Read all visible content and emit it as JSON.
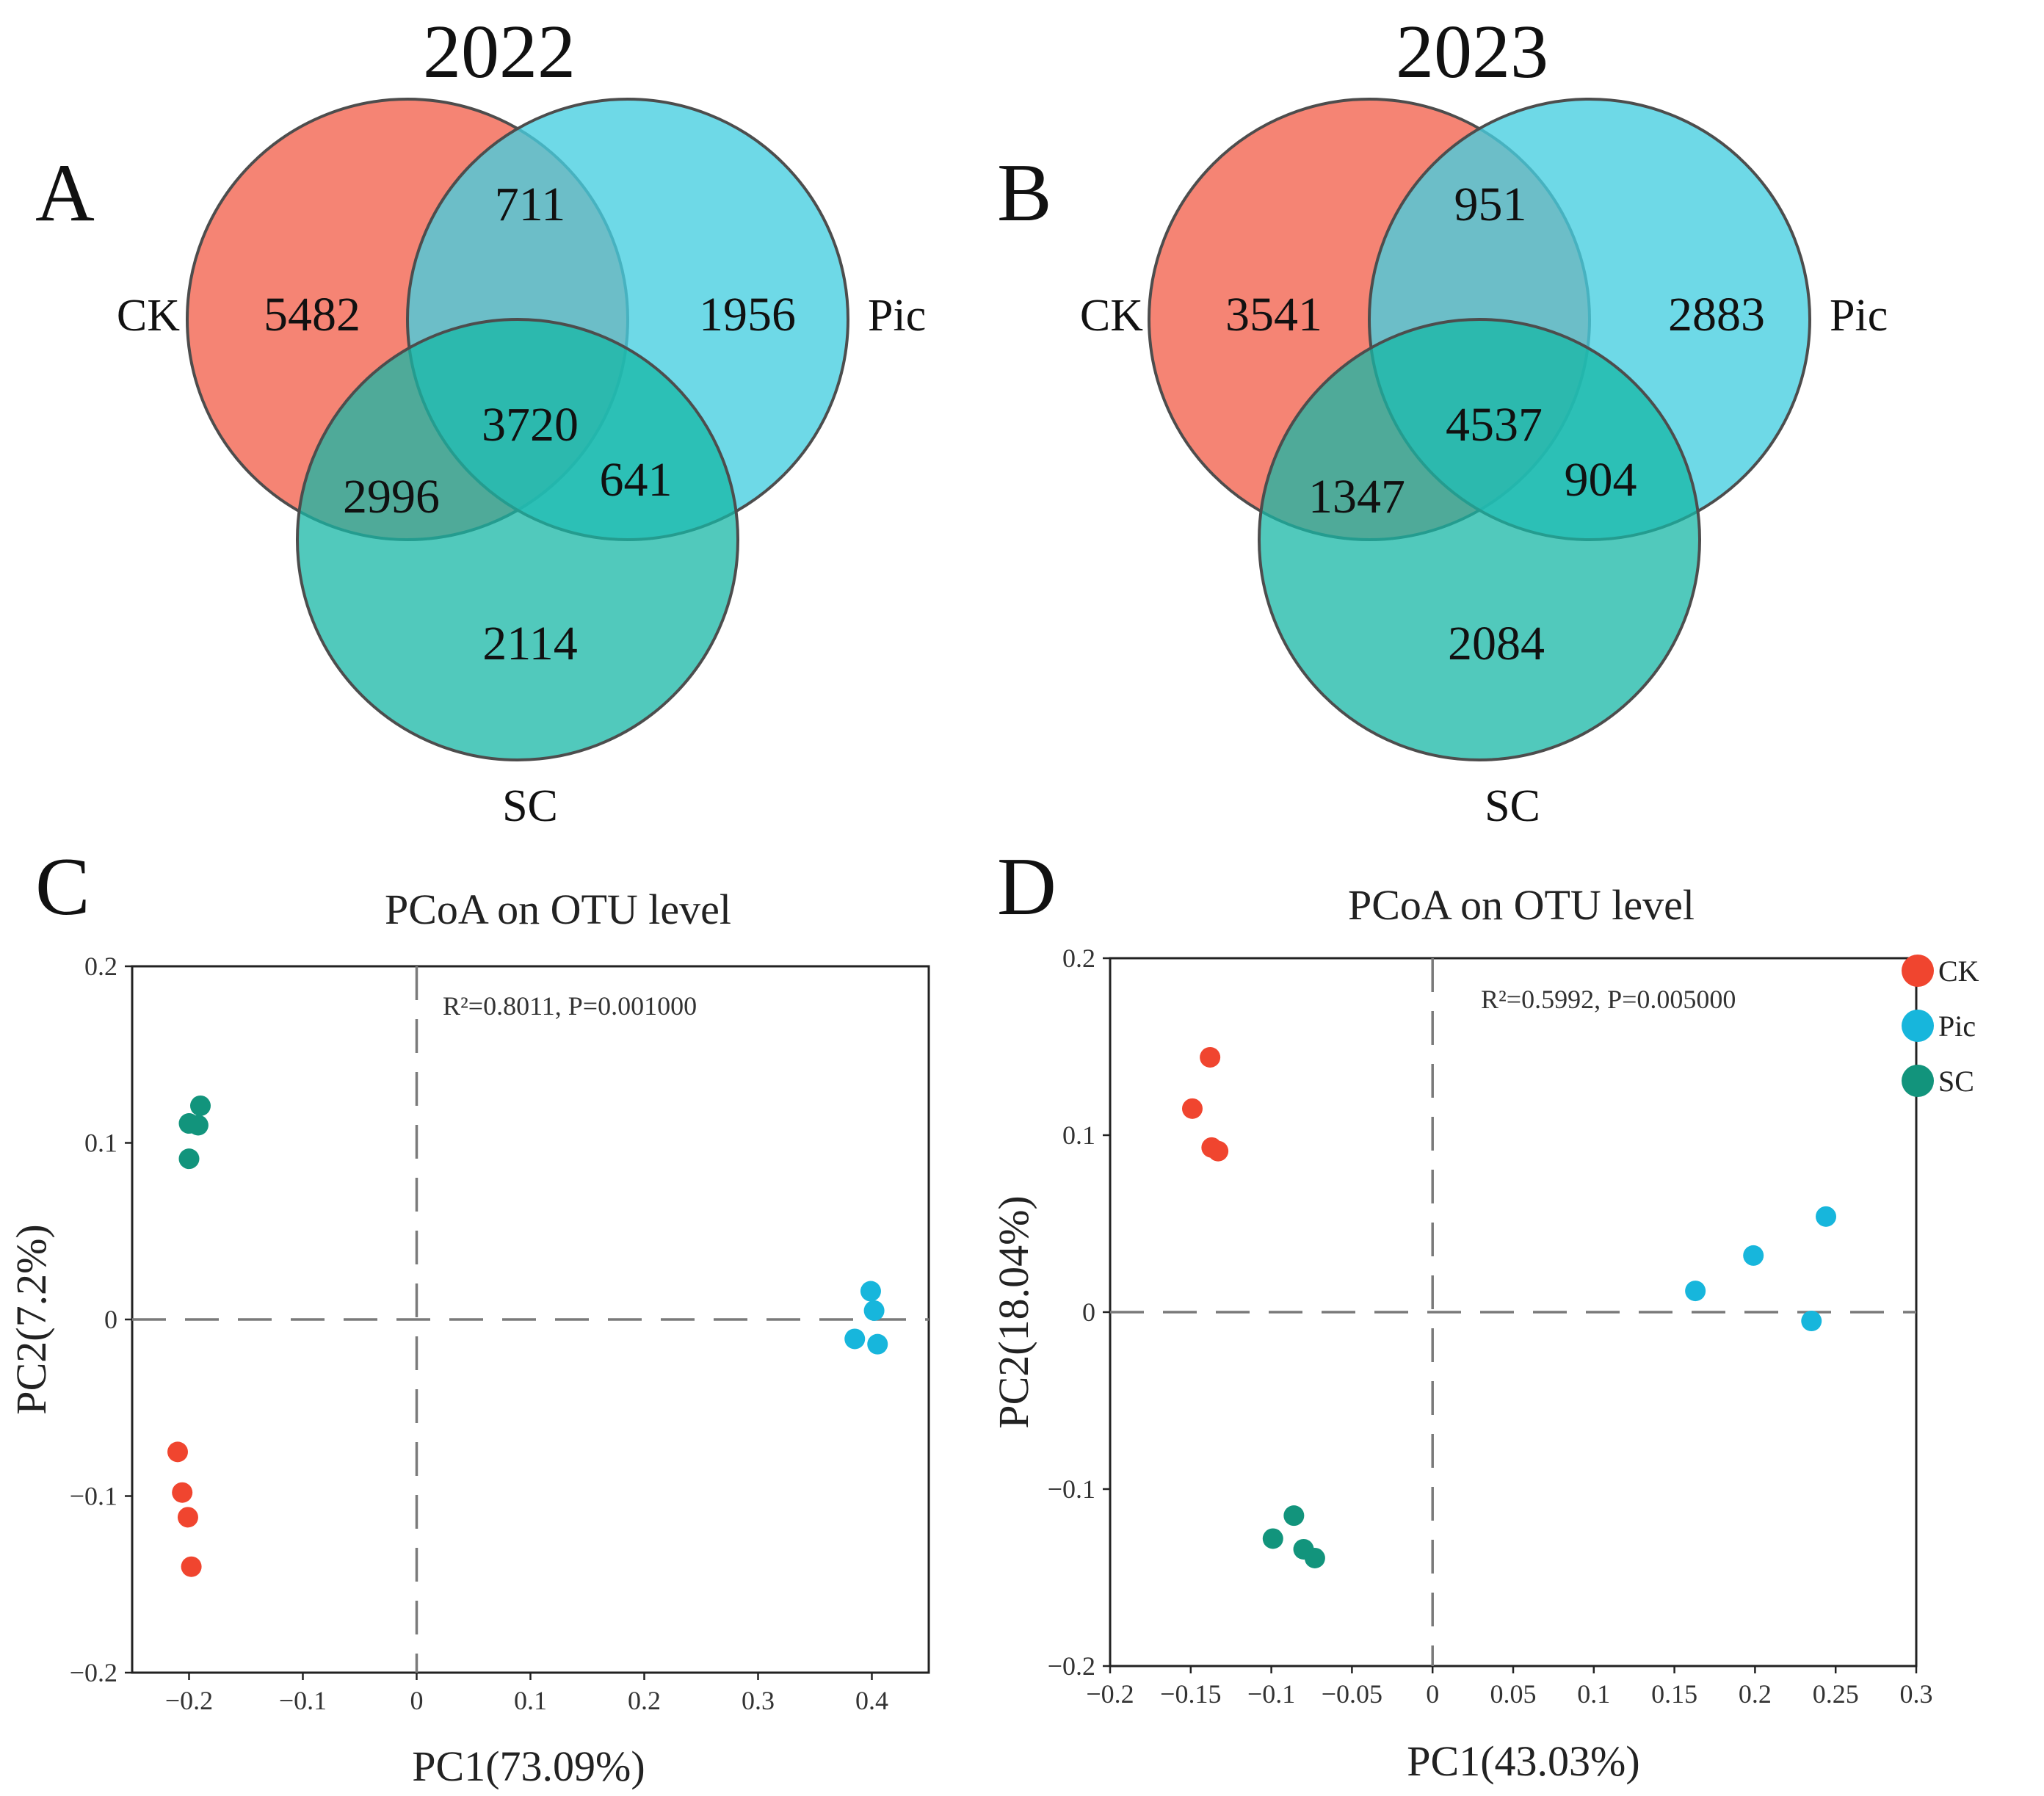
{
  "chart_data": [
    {
      "type": "venn",
      "panel": "A",
      "title": "2022",
      "sets": [
        "CK",
        "Pic",
        "SC"
      ],
      "regions": {
        "CK_only": 5482,
        "Pic_only": 1956,
        "SC_only": 2114,
        "CK_Pic": 711,
        "CK_SC": 2996,
        "Pic_SC": 641,
        "CK_Pic_SC": 3720
      }
    },
    {
      "type": "venn",
      "panel": "B",
      "title": "2023",
      "sets": [
        "CK",
        "Pic",
        "SC"
      ],
      "regions": {
        "CK_only": 3541,
        "Pic_only": 2883,
        "SC_only": 2084,
        "CK_Pic": 951,
        "CK_SC": 1347,
        "Pic_SC": 904,
        "CK_Pic_SC": 4537
      }
    },
    {
      "type": "scatter",
      "panel": "C",
      "title": "PCoA on OTU level",
      "xlabel": "PC1(73.09%)",
      "ylabel": "PC2(7.2%)",
      "xlim": [
        -0.25,
        0.45
      ],
      "ylim": [
        -0.2,
        0.2
      ],
      "xticks": [
        -0.2,
        -0.1,
        0,
        0.1,
        0.2,
        0.3,
        0.4
      ],
      "xtick_labels": [
        "−0.2",
        "−0.1",
        "0",
        "0.1",
        "0.2",
        "0.3",
        "0.4"
      ],
      "yticks": [
        -0.2,
        -0.1,
        0,
        0.1,
        0.2
      ],
      "ytick_labels": [
        "−0.2",
        "−0.1",
        "0",
        "0.1",
        "0.2"
      ],
      "annotation": "R²=0.8011, P=0.001000",
      "series": [
        {
          "name": "CK",
          "points": [
            [
              -0.21,
              -0.075
            ],
            [
              -0.206,
              -0.098
            ],
            [
              -0.201,
              -0.112
            ],
            [
              -0.198,
              -0.14
            ]
          ]
        },
        {
          "name": "Pic",
          "points": [
            [
              0.399,
              0.016
            ],
            [
              0.402,
              0.005
            ],
            [
              0.385,
              -0.011
            ],
            [
              0.405,
              -0.014
            ]
          ]
        },
        {
          "name": "SC",
          "points": [
            [
              -0.19,
              0.121
            ],
            [
              -0.2,
              0.111
            ],
            [
              -0.192,
              0.11
            ],
            [
              -0.2,
              0.091
            ]
          ]
        }
      ]
    },
    {
      "type": "scatter",
      "panel": "D",
      "title": "PCoA on OTU level",
      "xlabel": "PC1(43.03%)",
      "ylabel": "PC2(18.04%)",
      "xlim": [
        -0.2,
        0.3
      ],
      "ylim": [
        -0.2,
        0.2
      ],
      "xticks": [
        -0.2,
        -0.15,
        -0.1,
        -0.05,
        0,
        0.05,
        0.1,
        0.15,
        0.2,
        0.25,
        0.3
      ],
      "xtick_labels": [
        "−0.2",
        "−0.15",
        "−0.1",
        "−0.05",
        "0",
        "0.05",
        "0.1",
        "0.15",
        "0.2",
        "0.25",
        "0.3"
      ],
      "yticks": [
        -0.2,
        -0.1,
        0,
        0.1,
        0.2
      ],
      "ytick_labels": [
        "−0.2",
        "−0.1",
        "0",
        "0.1",
        "0.2"
      ],
      "annotation": "R²=0.5992, P=0.005000",
      "series": [
        {
          "name": "CK",
          "points": [
            [
              -0.138,
              0.144
            ],
            [
              -0.149,
              0.115
            ],
            [
              -0.137,
              0.093
            ],
            [
              -0.133,
              0.091
            ]
          ]
        },
        {
          "name": "Pic",
          "points": [
            [
              0.244,
              0.054
            ],
            [
              0.199,
              0.032
            ],
            [
              0.163,
              0.012
            ],
            [
              0.235,
              -0.005
            ]
          ]
        },
        {
          "name": "SC",
          "points": [
            [
              -0.086,
              -0.115
            ],
            [
              -0.099,
              -0.128
            ],
            [
              -0.08,
              -0.134
            ],
            [
              -0.073,
              -0.139
            ]
          ]
        }
      ]
    }
  ],
  "legend": {
    "position": "right of panel D",
    "items": [
      {
        "name": "CK",
        "color": "#f0452f"
      },
      {
        "name": "Pic",
        "color": "#17b6dc"
      },
      {
        "name": "SC",
        "color": "#12947c"
      }
    ]
  },
  "venn_colors": {
    "CK": "#f47d6d",
    "Pic": "#45cee0",
    "SC": "#17b7a6"
  }
}
